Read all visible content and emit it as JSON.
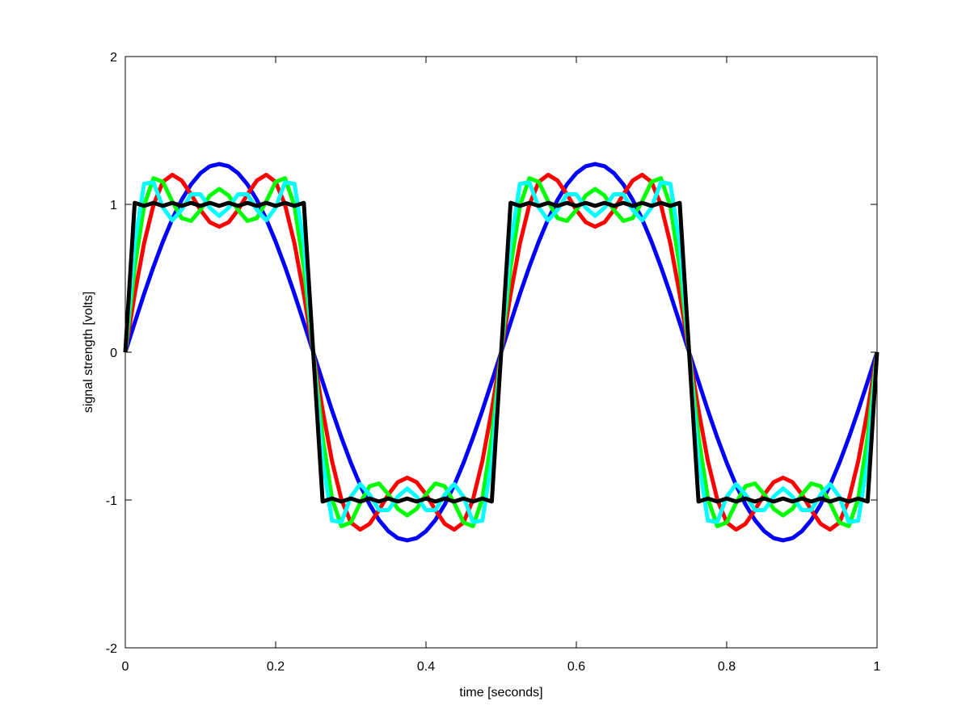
{
  "chart_data": {
    "type": "line",
    "x_label": "time [seconds]",
    "y_label": "signal strength [volts]",
    "xlim": [
      0,
      1
    ],
    "xticks": [
      0,
      0.2,
      0.4,
      0.6,
      0.8,
      1
    ],
    "ylim": [
      -2,
      2
    ],
    "yticks": [
      -2,
      -1,
      0,
      1,
      2
    ],
    "grid": false,
    "x": [
      0,
      0.0125,
      0.025,
      0.0375,
      0.05,
      0.0625,
      0.075,
      0.0875,
      0.1,
      0.1125,
      0.125,
      0.1375,
      0.15,
      0.1625,
      0.175,
      0.1875,
      0.2,
      0.2125,
      0.225,
      0.2375,
      0.25,
      0.2625,
      0.275,
      0.2875,
      0.3,
      0.3125,
      0.325,
      0.3375,
      0.35,
      0.3625,
      0.375,
      0.3875,
      0.4,
      0.4125,
      0.425,
      0.4375,
      0.45,
      0.4625,
      0.475,
      0.4875,
      0.5,
      0.5125,
      0.525,
      0.5375,
      0.55,
      0.5625,
      0.575,
      0.5875,
      0.6,
      0.6125,
      0.625,
      0.6375,
      0.65,
      0.6625,
      0.675,
      0.6875,
      0.7,
      0.7125,
      0.725,
      0.7375,
      0.75,
      0.7625,
      0.775,
      0.7875,
      0.8,
      0.8125,
      0.825,
      0.8375,
      0.85,
      0.8625,
      0.875,
      0.8875,
      0.9,
      0.9125,
      0.925,
      0.9375,
      0.95,
      0.9625,
      0.975,
      0.9875,
      1
    ],
    "series": [
      {
        "color": "#0000ff",
        "values": [
          0,
          0.199,
          0.394,
          0.578,
          0.748,
          0.9,
          1.03,
          1.135,
          1.211,
          1.258,
          1.273,
          1.258,
          1.211,
          1.135,
          1.03,
          0.9,
          0.748,
          0.578,
          0.394,
          0.199,
          0,
          -0.199,
          -0.394,
          -0.578,
          -0.748,
          -0.9,
          -1.03,
          -1.135,
          -1.211,
          -1.258,
          -1.273,
          -1.258,
          -1.211,
          -1.135,
          -1.03,
          -0.9,
          -0.748,
          -0.578,
          -0.394,
          -0.199,
          0,
          0.199,
          0.394,
          0.578,
          0.748,
          0.9,
          1.03,
          1.135,
          1.211,
          1.258,
          1.273,
          1.258,
          1.211,
          1.135,
          1.03,
          0.9,
          0.748,
          0.578,
          0.394,
          0.199,
          0,
          -0.199,
          -0.394,
          -0.578,
          -0.748,
          -0.9,
          -1.03,
          -1.135,
          -1.211,
          -1.258,
          -1.273,
          -1.258,
          -1.211,
          -1.135,
          -1.03,
          -0.9,
          -0.748,
          -0.578,
          -0.394,
          -0.199,
          0
        ]
      },
      {
        "color": "#ff0000",
        "values": [
          0,
          0.392,
          0.737,
          0.997,
          1.152,
          1.2,
          1.161,
          1.068,
          0.962,
          0.879,
          0.849,
          0.879,
          0.962,
          1.068,
          1.161,
          1.2,
          1.152,
          0.997,
          0.737,
          0.392,
          0,
          -0.392,
          -0.737,
          -0.997,
          -1.152,
          -1.2,
          -1.161,
          -1.068,
          -0.962,
          -0.879,
          -0.849,
          -0.879,
          -0.962,
          -1.068,
          -1.161,
          -1.2,
          -1.152,
          -0.997,
          -0.737,
          -0.392,
          0,
          0.392,
          0.737,
          0.997,
          1.152,
          1.2,
          1.161,
          1.068,
          0.962,
          0.879,
          0.849,
          0.879,
          0.962,
          1.068,
          1.161,
          1.2,
          1.152,
          0.997,
          0.737,
          0.392,
          0,
          -0.392,
          -0.737,
          -0.997,
          -1.152,
          -1.2,
          -1.161,
          -1.068,
          -0.962,
          -0.879,
          -0.849,
          -0.879,
          -0.962,
          -1.068,
          -1.161,
          -1.2,
          -1.152,
          -0.997,
          -0.737,
          -0.392,
          0
        ]
      },
      {
        "color": "#00ff00",
        "values": [
          0,
          0.572,
          0.991,
          1.177,
          1.152,
          1.02,
          0.907,
          0.888,
          0.962,
          1.06,
          1.104,
          1.06,
          0.962,
          0.888,
          0.907,
          1.02,
          1.152,
          1.177,
          0.991,
          0.572,
          0,
          -0.572,
          -0.991,
          -1.177,
          -1.152,
          -1.02,
          -0.907,
          -0.888,
          -0.962,
          -1.06,
          -1.104,
          -1.06,
          -0.962,
          -0.888,
          -0.907,
          -1.02,
          -1.152,
          -1.177,
          -0.991,
          -0.572,
          0,
          0.572,
          0.991,
          1.177,
          1.152,
          1.02,
          0.907,
          0.888,
          0.962,
          1.06,
          1.104,
          1.06,
          0.962,
          0.888,
          0.907,
          1.02,
          1.152,
          1.177,
          0.991,
          0.572,
          0,
          -0.572,
          -0.991,
          -1.177,
          -1.152,
          -1.02,
          -0.907,
          -0.888,
          -0.962,
          -1.06,
          -1.104,
          -1.06,
          -0.962,
          -0.888,
          -0.907,
          -1.02,
          -1.152,
          -1.177,
          -0.991,
          -0.572,
          0
        ]
      },
      {
        "color": "#00ffff",
        "values": [
          0,
          0.734,
          1.139,
          1.149,
          0.979,
          0.892,
          0.963,
          1.068,
          1.068,
          0.977,
          0.922,
          0.977,
          1.068,
          1.068,
          0.963,
          0.892,
          0.979,
          1.149,
          1.139,
          0.734,
          0,
          -0.734,
          -1.139,
          -1.149,
          -0.979,
          -0.892,
          -0.963,
          -1.068,
          -1.068,
          -0.977,
          -0.922,
          -0.977,
          -1.068,
          -1.068,
          -0.963,
          -0.892,
          -0.979,
          -1.149,
          -1.139,
          -0.734,
          0,
          0.734,
          1.139,
          1.149,
          0.979,
          0.892,
          0.963,
          1.068,
          1.068,
          0.977,
          0.922,
          0.977,
          1.068,
          1.068,
          0.963,
          0.892,
          0.979,
          1.149,
          1.139,
          0.734,
          0,
          -0.734,
          -1.139,
          -1.149,
          -0.979,
          -0.892,
          -0.963,
          -1.068,
          -1.068,
          -0.977,
          -0.922,
          -0.977,
          -1.068,
          -1.068,
          -0.963,
          -0.892,
          -0.979,
          -1.149,
          -1.139,
          -0.734,
          0
        ]
      },
      {
        "color": "#000000",
        "values": [
          0,
          1.01,
          0.99,
          1.01,
          0.99,
          1.01,
          0.99,
          1.01,
          0.99,
          1.01,
          0.99,
          1.01,
          0.99,
          1.01,
          0.99,
          1.01,
          0.99,
          1.01,
          0.99,
          1.01,
          0,
          -1.01,
          -0.99,
          -1.01,
          -0.99,
          -1.01,
          -0.99,
          -1.01,
          -0.99,
          -1.01,
          -0.99,
          -1.01,
          -0.99,
          -1.01,
          -0.99,
          -1.01,
          -0.99,
          -1.01,
          -0.99,
          -1.01,
          0,
          1.01,
          0.99,
          1.01,
          0.99,
          1.01,
          0.99,
          1.01,
          0.99,
          1.01,
          0.99,
          1.01,
          0.99,
          1.01,
          0.99,
          1.01,
          0.99,
          1.01,
          0.99,
          1.01,
          0,
          -1.01,
          -0.99,
          -1.01,
          -0.99,
          -1.01,
          -0.99,
          -1.01,
          -0.99,
          -1.01,
          -0.99,
          -1.01,
          -0.99,
          -1.01,
          -0.99,
          -1.01,
          -0.99,
          -1.01,
          -0.99,
          -1.01,
          0
        ]
      }
    ]
  }
}
